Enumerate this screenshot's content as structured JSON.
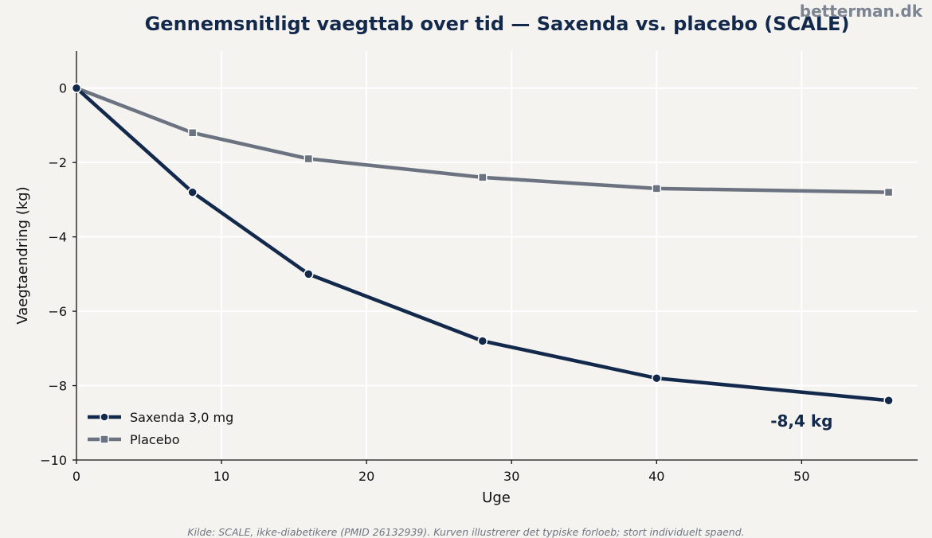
{
  "watermark": "betterman.dk",
  "source_note": "Kilde: SCALE, ikke-diabetikere (PMID 26132939). Kurven illustrerer det typiske forloeb; stort individuelt spaend.",
  "colors": {
    "background": "#f5f3f0",
    "saxenda": "#13294b",
    "placebo": "#6b7280",
    "grid": "#ffffff"
  },
  "chart_data": {
    "type": "line",
    "title": "Gennemsnitligt vaegttab over tid — Saxenda vs. placebo (SCALE)",
    "xlabel": "Uge",
    "ylabel": "Vaegtaendring (kg)",
    "xlim": [
      0,
      58
    ],
    "ylim": [
      -10,
      1
    ],
    "xticks": [
      0,
      10,
      20,
      30,
      40,
      50
    ],
    "yticks": [
      0,
      -2,
      -4,
      -6,
      -8,
      -10
    ],
    "ytick_labels": [
      "0",
      "−2",
      "−4",
      "−6",
      "−8",
      "−10"
    ],
    "grid": true,
    "legend_position": "lower-left",
    "series": [
      {
        "name": "Saxenda 3,0 mg",
        "marker": "circle",
        "color": "#13294b",
        "x": [
          0,
          8,
          16,
          28,
          40,
          56
        ],
        "y": [
          0,
          -2.8,
          -5.0,
          -6.8,
          -7.8,
          -8.4
        ]
      },
      {
        "name": "Placebo",
        "marker": "square",
        "color": "#6b7280",
        "x": [
          0,
          8,
          16,
          28,
          40,
          56
        ],
        "y": [
          0,
          -1.2,
          -1.9,
          -2.4,
          -2.7,
          -2.8
        ]
      }
    ],
    "annotations": [
      {
        "text": "-8,4 kg",
        "x": 50,
        "y": -9.1
      }
    ]
  }
}
